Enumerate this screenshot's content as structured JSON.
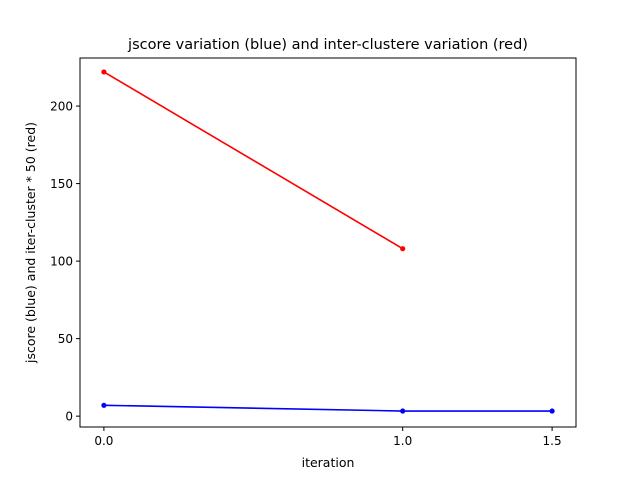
{
  "chart_data": {
    "type": "line",
    "title": "jscore variation (blue) and inter-clustere variation (red)",
    "xlabel": "iteration",
    "ylabel": "jscore (blue) and iter-cluster * 50 (red)",
    "xlim": [
      -0.08,
      1.58
    ],
    "ylim": [
      -7,
      231
    ],
    "xticks": [
      0.0,
      1.0,
      1.5
    ],
    "xtick_labels": [
      "0.0",
      "1.0",
      "1.5"
    ],
    "yticks": [
      0,
      50,
      100,
      150,
      200
    ],
    "ytick_labels": [
      "0",
      "50",
      "100",
      "150",
      "200"
    ],
    "grid": false,
    "series": [
      {
        "color": "#ff0000",
        "x": [
          0.0,
          1.0
        ],
        "y": [
          222,
          108
        ]
      },
      {
        "color": "#0000ff",
        "x": [
          0.0,
          1.0,
          1.5
        ],
        "y": [
          7,
          3.3,
          3.3
        ]
      }
    ]
  }
}
